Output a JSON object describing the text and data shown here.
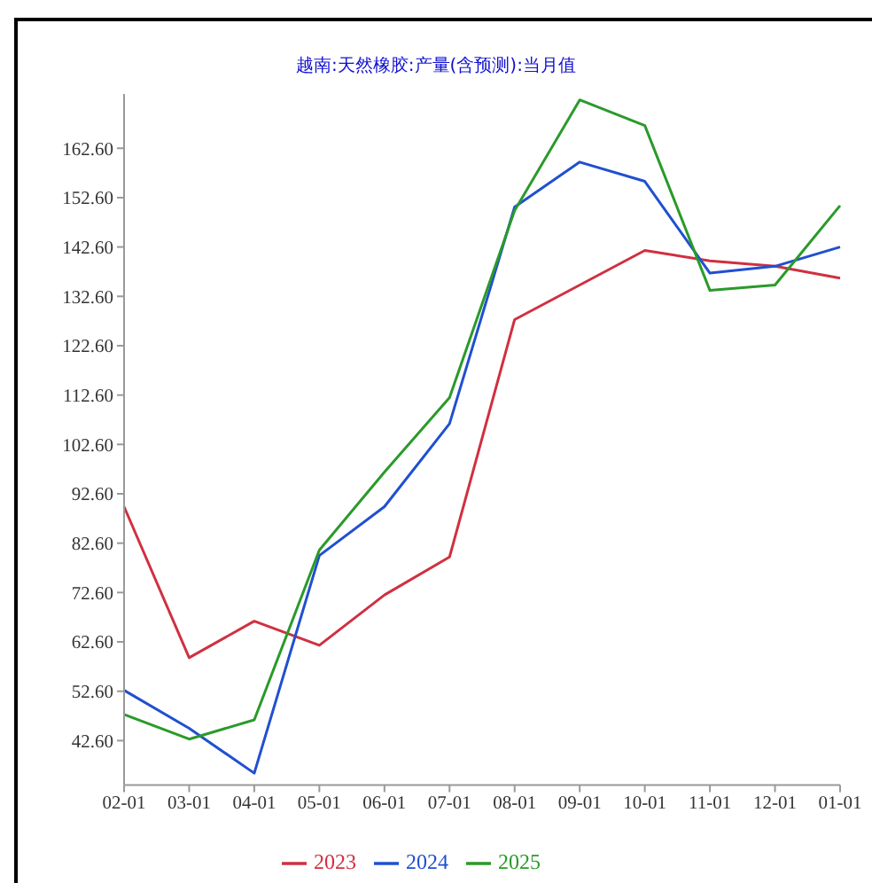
{
  "chart_data": {
    "type": "line",
    "title": "越南:天然橡胶:产量(含预测):当月值",
    "categories": [
      "02-01",
      "03-01",
      "04-01",
      "05-01",
      "06-01",
      "07-01",
      "08-01",
      "09-01",
      "10-01",
      "11-01",
      "12-01",
      "01-01"
    ],
    "series": [
      {
        "name": "2023",
        "color": "#d03040",
        "values": [
          90.0,
          59.4,
          66.8,
          61.9,
          72.1,
          79.8,
          127.9,
          134.9,
          141.9,
          139.8,
          138.7,
          136.3
        ]
      },
      {
        "name": "2024",
        "color": "#2050d0",
        "values": [
          52.8,
          45.1,
          36.0,
          80.1,
          90.0,
          106.8,
          150.7,
          159.8,
          155.9,
          137.3,
          138.7,
          142.6
        ]
      },
      {
        "name": "2025",
        "color": "#2a9a2a",
        "values": [
          47.9,
          42.9,
          46.8,
          81.2,
          97.0,
          112.1,
          150.0,
          172.4,
          167.2,
          133.8,
          134.9,
          151.0
        ]
      }
    ],
    "ylim": [
      33.6,
      173.6
    ],
    "yticks": [
      {
        "value": 42.6,
        "label": "42.60"
      },
      {
        "value": 52.6,
        "label": "52.60"
      },
      {
        "value": 62.6,
        "label": "62.60"
      },
      {
        "value": 72.6,
        "label": "72.60"
      },
      {
        "value": 82.6,
        "label": "82.60"
      },
      {
        "value": 92.6,
        "label": "92.60"
      },
      {
        "value": 102.6,
        "label": "102.60"
      },
      {
        "value": 112.6,
        "label": "112.60"
      },
      {
        "value": 122.6,
        "label": "122.60"
      },
      {
        "value": 132.6,
        "label": "132.60"
      },
      {
        "value": 142.6,
        "label": "142.60"
      },
      {
        "value": 152.6,
        "label": "152.60"
      },
      {
        "value": 162.6,
        "label": "162.60"
      }
    ],
    "grid": false,
    "legend": "bottom",
    "marker": "none",
    "line_style": "solid"
  }
}
